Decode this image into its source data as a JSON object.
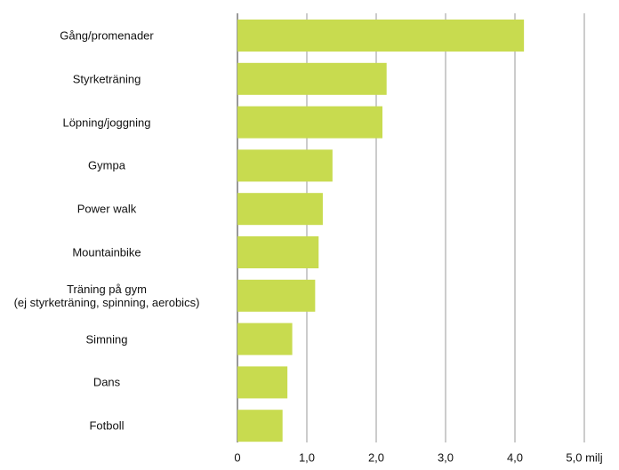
{
  "chart_data": {
    "type": "bar",
    "orientation": "horizontal",
    "categories": [
      "Gång/promenader",
      "Styrketräning",
      "Löpning/joggning",
      "Gympa",
      "Power walk",
      "Mountainbike",
      "Träning på gym\n(ej styrketräning, spinning, aerobics)",
      "Simning",
      "Dans",
      "Fotboll"
    ],
    "values": [
      4.13,
      2.15,
      2.09,
      1.37,
      1.23,
      1.17,
      1.12,
      0.79,
      0.72,
      0.65
    ],
    "color": "#c8db4f",
    "xlim": [
      0,
      5
    ],
    "xticks": [
      0,
      {
        "value": 1,
        "label": "1,0"
      },
      {
        "value": 2,
        "label": "2,0"
      },
      {
        "value": 3,
        "label": "3,0"
      },
      {
        "value": 4,
        "label": "4,0"
      },
      {
        "value": 5,
        "label": "5,0 milj"
      }
    ],
    "grid": true
  }
}
